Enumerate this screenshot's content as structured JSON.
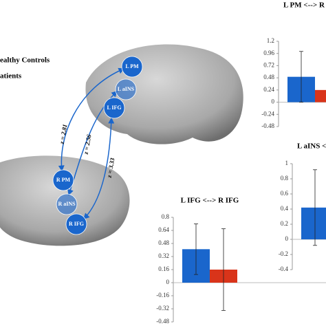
{
  "legend": [
    "ealthy Controls",
    "atients"
  ],
  "regions": [
    "L PM",
    "L aINS",
    "L IFG",
    "R PM",
    "R aINS",
    "R IFG"
  ],
  "connections": [
    "z = 2.81",
    "z = 2.56",
    "z = 3.33"
  ],
  "chart_data": [
    {
      "type": "bar",
      "title": "L PM <--> R",
      "ylim": [
        -0.48,
        1.2
      ],
      "yticks": [
        1.2,
        0.96,
        0.72,
        0.48,
        0.24,
        0,
        -0.24,
        -0.48
      ],
      "series": [
        {
          "color": "#1a66cc",
          "values": [
            0.5
          ],
          "errors": [
            0.5
          ]
        },
        {
          "color": "#d9341a",
          "values": [
            0.24
          ]
        }
      ]
    },
    {
      "type": "bar",
      "title": "L aINS <",
      "ylim": [
        -0.4,
        1
      ],
      "yticks": [
        1,
        0.8,
        0.6,
        0.4,
        0.2,
        0,
        -0.2,
        -0.4
      ],
      "series": [
        {
          "color": "#1a66cc",
          "values": [
            0.42
          ],
          "errors": [
            0.5
          ]
        }
      ]
    },
    {
      "type": "bar",
      "title": "L IFG <--> R IFG",
      "ylim": [
        -0.48,
        0.8
      ],
      "yticks": [
        0.8,
        0.64,
        0.48,
        0.32,
        0.16,
        0,
        -0.16,
        -0.32,
        -0.48
      ],
      "series": [
        {
          "color": "#1a66cc",
          "values": [
            0.41
          ],
          "errors": [
            0.31
          ]
        },
        {
          "color": "#d9341a",
          "values": [
            0.16
          ],
          "errors": [
            0.5
          ]
        }
      ]
    }
  ]
}
